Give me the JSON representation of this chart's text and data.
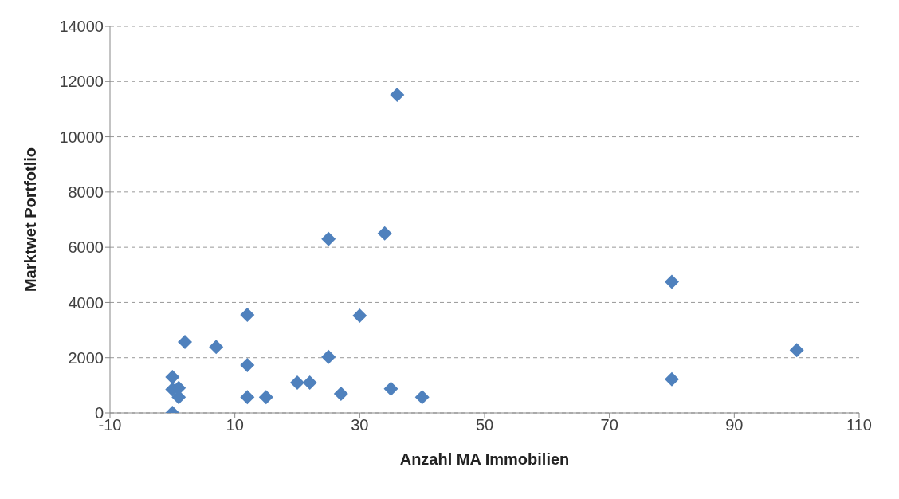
{
  "chart_data": {
    "type": "scatter",
    "xlabel": "Anzahl MA Immobilien",
    "ylabel": "Marktwet Portfotlio",
    "x": [
      0,
      0,
      0,
      1,
      1,
      2,
      7,
      12,
      12,
      12,
      15,
      20,
      22,
      25,
      25,
      27,
      30,
      34,
      35,
      36,
      40,
      80,
      80,
      100
    ],
    "series": [
      {
        "color": "#4f81bd",
        "values": [
          1300,
          850,
          0,
          900,
          570,
          2570,
          2390,
          3550,
          1730,
          570,
          570,
          1100,
          1100,
          6300,
          2030,
          690,
          3520,
          6500,
          870,
          11520,
          570,
          4750,
          1220,
          2270
        ]
      }
    ],
    "xlim": [
      -10,
      110
    ],
    "xticks": [
      -10,
      10,
      30,
      50,
      70,
      90,
      110
    ],
    "ylim": [
      0,
      14000
    ],
    "yticks": [
      0,
      2000,
      4000,
      6000,
      8000,
      10000,
      12000,
      14000
    ],
    "grid": "y",
    "marker": "diamond",
    "legend": false
  }
}
